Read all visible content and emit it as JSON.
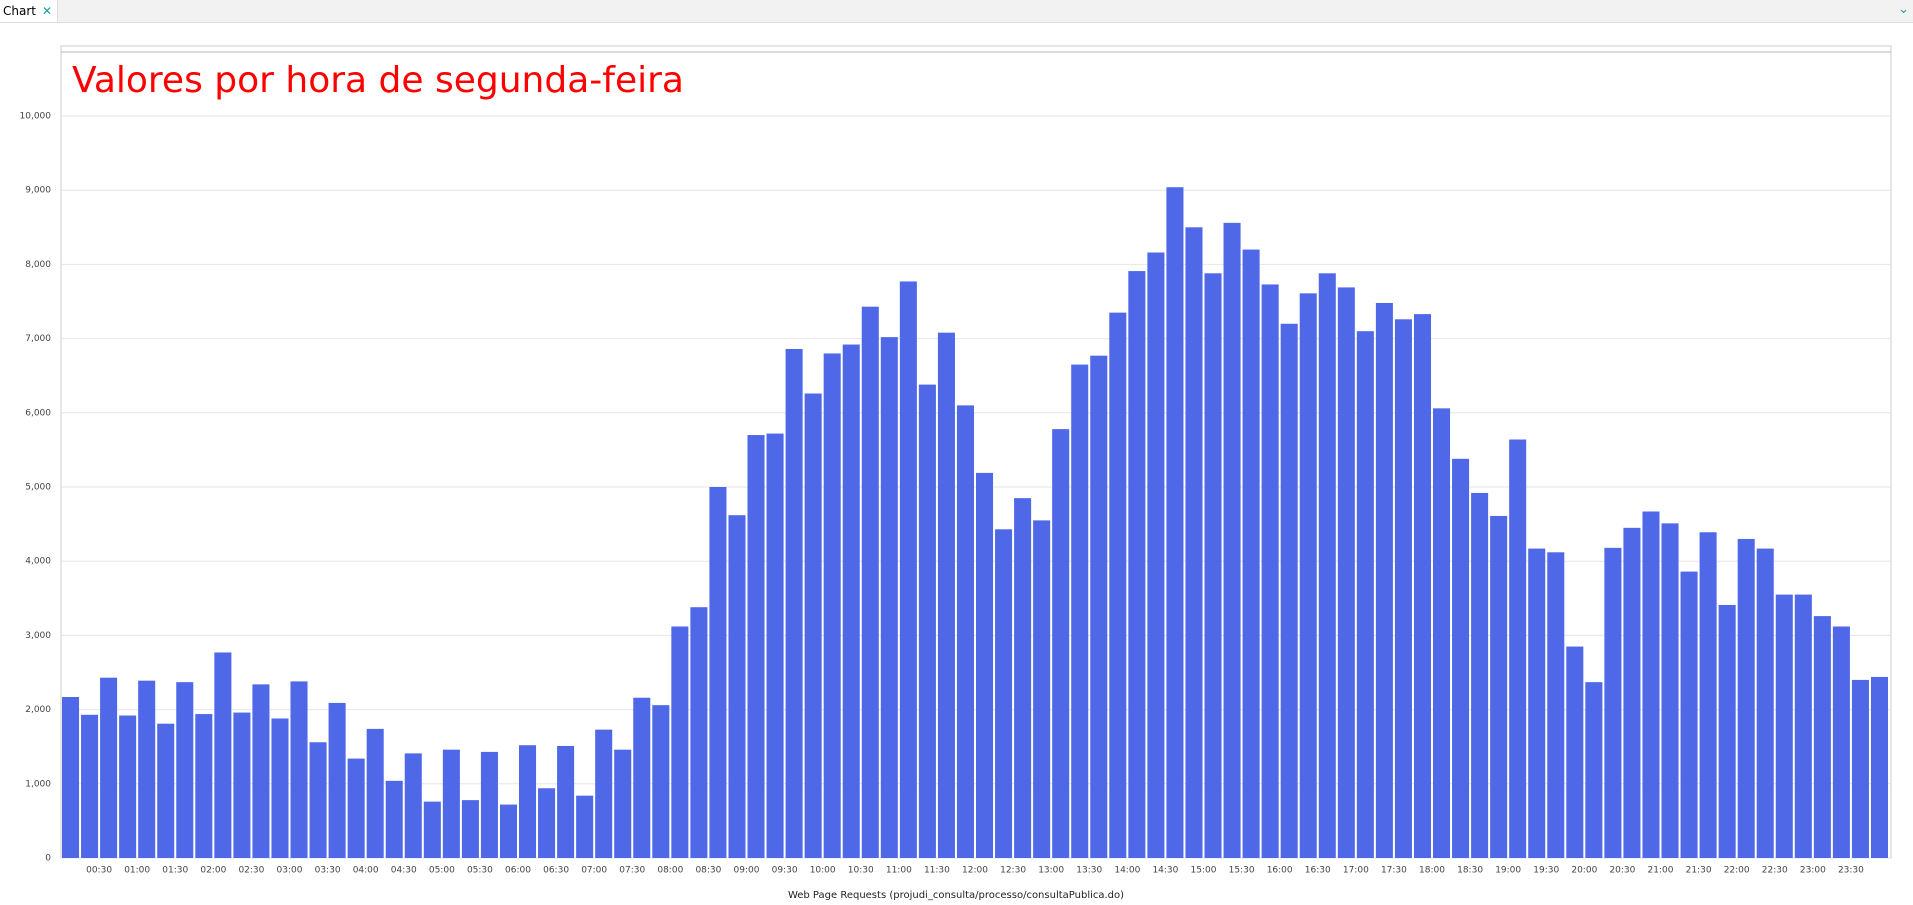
{
  "tab": {
    "label": "Chart"
  },
  "chart_data": {
    "type": "bar",
    "title": "Valores por hora de segunda-feira",
    "x_label": "Web Page Requests (projudi_consulta/processo/consultaPublica.do)",
    "color": "#4f68e8",
    "grid": true,
    "ylim": [
      0,
      10000
    ],
    "yticks": [
      0,
      {
        "value": 1000,
        "label": "1,000"
      },
      {
        "value": 2000,
        "label": "2,000"
      },
      {
        "value": 3000,
        "label": "3,000"
      },
      {
        "value": 4000,
        "label": "4,000"
      },
      {
        "value": 5000,
        "label": "5,000"
      },
      {
        "value": 6000,
        "label": "6,000"
      },
      {
        "value": 7000,
        "label": "7,000"
      },
      {
        "value": 8000,
        "label": "8,000"
      },
      {
        "value": 9000,
        "label": "9,000"
      },
      {
        "value": 10000,
        "label": "10,000"
      }
    ],
    "categories": [
      null,
      null,
      "00:30",
      null,
      "01:00",
      null,
      "01:30",
      null,
      "02:00",
      null,
      "02:30",
      null,
      "03:00",
      null,
      "03:30",
      null,
      "04:00",
      null,
      "04:30",
      null,
      "05:00",
      null,
      "05:30",
      null,
      "06:00",
      null,
      "06:30",
      null,
      "07:00",
      null,
      "07:30",
      null,
      "08:00",
      null,
      "08:30",
      null,
      "09:00",
      null,
      "09:30",
      null,
      "10:00",
      null,
      "10:30",
      null,
      "11:00",
      null,
      "11:30",
      null,
      "12:00",
      null,
      "12:30",
      null,
      "13:00",
      null,
      "13:30",
      null,
      "14:00",
      null,
      "14:30",
      null,
      "15:00",
      null,
      "15:30",
      null,
      "16:00",
      null,
      "16:30",
      null,
      "17:00",
      null,
      "17:30",
      null,
      "18:00",
      null,
      "18:30",
      null,
      "19:00",
      null,
      "19:30",
      null,
      "20:00",
      null,
      "20:30",
      null,
      "21:00",
      null,
      "21:30",
      null,
      "22:00",
      null,
      "22:30",
      null,
      "23:00",
      null,
      "23:30",
      null
    ],
    "values": [
      2170,
      1930,
      2430,
      1920,
      2390,
      1810,
      2370,
      1940,
      2770,
      1960,
      2340,
      1880,
      2380,
      1560,
      2090,
      1340,
      1740,
      1040,
      1410,
      760,
      1460,
      780,
      1430,
      720,
      1520,
      940,
      1510,
      840,
      1730,
      1460,
      2160,
      2060,
      3120,
      3380,
      5000,
      4620,
      5700,
      5720,
      6860,
      6260,
      6800,
      6920,
      7430,
      7020,
      7770,
      6380,
      7080,
      6100,
      5190,
      4430,
      4850,
      4550,
      5780,
      6650,
      6770,
      7350,
      7910,
      8160,
      9040,
      8500,
      7880,
      8560,
      8200,
      7730,
      7200,
      7610,
      7880,
      7690,
      7100,
      7480,
      7260,
      7330,
      6060,
      5380,
      4920,
      4610,
      5640,
      4170,
      4120,
      2850,
      2370,
      4180,
      4450,
      4670,
      4510,
      3860,
      4390,
      3410,
      4300,
      4170,
      3550,
      3550,
      3260,
      3120,
      2400,
      2440
    ]
  }
}
